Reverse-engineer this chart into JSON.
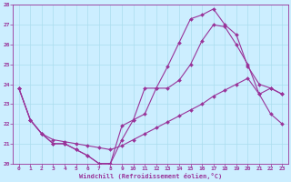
{
  "xlabel": "Windchill (Refroidissement éolien,°C)",
  "bg_color": "#cceeff",
  "line_color": "#993399",
  "grid_color": "#aaddee",
  "xlim": [
    -0.5,
    23.5
  ],
  "ylim": [
    20,
    28
  ],
  "xticks": [
    0,
    1,
    2,
    3,
    4,
    5,
    6,
    7,
    8,
    9,
    10,
    11,
    12,
    13,
    14,
    15,
    16,
    17,
    18,
    19,
    20,
    21,
    22,
    23
  ],
  "yticks": [
    20,
    21,
    22,
    23,
    24,
    25,
    26,
    27,
    28
  ],
  "line1_x": [
    0,
    1,
    2,
    3,
    4,
    5,
    6,
    7,
    8,
    9,
    10,
    11,
    12,
    13,
    14,
    15,
    16,
    17,
    18,
    19,
    20,
    21,
    22,
    23
  ],
  "line1_y": [
    23.8,
    22.2,
    21.5,
    21.0,
    21.0,
    20.7,
    20.4,
    20.0,
    20.0,
    21.9,
    22.2,
    23.8,
    23.8,
    24.9,
    26.1,
    27.3,
    27.5,
    27.8,
    27.0,
    26.5,
    24.9,
    24.0,
    23.8,
    23.5
  ],
  "line2_x": [
    0,
    1,
    2,
    3,
    4,
    5,
    6,
    7,
    8,
    9,
    10,
    11,
    12,
    13,
    14,
    15,
    16,
    17,
    18,
    19,
    20,
    21,
    22,
    23
  ],
  "line2_y": [
    23.8,
    22.2,
    21.5,
    21.0,
    21.0,
    20.7,
    20.4,
    20.0,
    20.0,
    21.2,
    22.2,
    22.5,
    23.8,
    23.8,
    24.2,
    25.0,
    26.2,
    27.0,
    26.9,
    26.0,
    25.0,
    23.5,
    22.5,
    22.0
  ],
  "line3_x": [
    0,
    1,
    2,
    3,
    4,
    5,
    6,
    7,
    8,
    9,
    10,
    11,
    12,
    13,
    14,
    15,
    16,
    17,
    18,
    19,
    20,
    21,
    22,
    23
  ],
  "line3_y": [
    23.8,
    22.2,
    21.5,
    21.2,
    21.1,
    21.0,
    20.9,
    20.8,
    20.7,
    20.9,
    21.2,
    21.5,
    21.8,
    22.1,
    22.4,
    22.7,
    23.0,
    23.4,
    23.7,
    24.0,
    24.3,
    23.5,
    23.8,
    23.5
  ]
}
